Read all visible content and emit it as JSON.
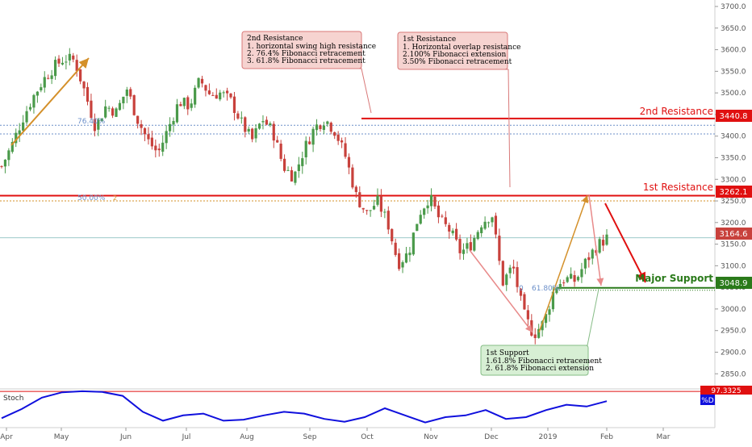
{
  "colors": {
    "up": "#4a9a4a",
    "down": "#c8413c",
    "resistance": "#e01010",
    "support": "#2a7a1a",
    "note_red_bg": "#f6d3d0",
    "note_red_border": "#d87878",
    "note_green_bg": "#d7efd4",
    "note_green_border": "#86bc86",
    "stoch_line": "#1010dd",
    "fib_line": "#6b8fc9",
    "orange_arrow": "#d4902a",
    "pink_arrow": "#e88a8a",
    "price_line": "#7ab8b8"
  },
  "notes": {
    "second_resistance": {
      "title": "2nd Resistance",
      "lines": [
        "1. horizontal swing high resistance",
        "2. 76.4% Fibonacci retracement",
        "3. 61.8% Fibonacci retracement"
      ]
    },
    "first_resistance": {
      "title": "1st Resistance",
      "lines": [
        "1. Horizontal overlap resistance",
        "2.100% Fibonacci extension",
        "3.50% Fibonacci retracement"
      ]
    },
    "first_support": {
      "title": "1st Support",
      "lines": [
        "1.61.8% Fibonacci retracement",
        "2. 61.8% Fibonacci extension"
      ]
    }
  },
  "labels": {
    "second_resistance": "2nd Resistance",
    "first_resistance": "1st Resistance",
    "major_support": "Major Support",
    "fib_764": "76.40%",
    "fib_50": "50.00%",
    "fib_50_marker": "2",
    "fib_618": "61.80%",
    "fib_618_prefix": "0",
    "stoch": "Stoch",
    "stoch_value": "97.3325",
    "stoch_tag": "%D"
  },
  "price_tags": {
    "second_resistance": "3440.8",
    "first_resistance": "3262.1",
    "current": "3164.6",
    "major_support": "3048.9"
  },
  "chart_data": {
    "type": "candlestick",
    "y_axis": {
      "ylim": [
        2815,
        3715
      ],
      "ticks": [
        2850,
        2900,
        2950,
        3000,
        3050,
        3100,
        3150,
        3200,
        3250,
        3300,
        3350,
        3400,
        3450,
        3500,
        3550,
        3600,
        3650,
        3700
      ]
    },
    "x_axis": {
      "ticks": [
        "Apr",
        "May",
        "Jun",
        "Jul",
        "Aug",
        "Sep",
        "Oct",
        "Nov",
        "Dec",
        "2019",
        "Feb",
        "Mar"
      ]
    },
    "levels": {
      "second_resistance": 3440.8,
      "first_resistance": 3262.1,
      "current_price": 3164.6,
      "major_support": 3048.9,
      "fib_76_4": 3425,
      "fib_50": 3250,
      "fib_upper_dotted": 3405
    },
    "price_path": [
      [
        "Apr",
        3330
      ],
      [
        "",
        3380
      ],
      [
        "",
        3440
      ],
      [
        "",
        3490
      ],
      [
        "May",
        3530
      ],
      [
        "",
        3560
      ],
      [
        "",
        3580
      ],
      [
        "",
        3575
      ],
      [
        "",
        3500
      ],
      [
        "Jun",
        3420
      ],
      [
        "",
        3470
      ],
      [
        "",
        3455
      ],
      [
        "",
        3510
      ],
      [
        "",
        3440
      ],
      [
        "",
        3390
      ],
      [
        "Jul",
        3360
      ],
      [
        "",
        3420
      ],
      [
        "",
        3480
      ],
      [
        "",
        3470
      ],
      [
        "Aug",
        3530
      ],
      [
        "",
        3495
      ],
      [
        "",
        3500
      ],
      [
        "",
        3480
      ],
      [
        "",
        3430
      ],
      [
        "",
        3390
      ],
      [
        "",
        3440
      ],
      [
        "",
        3410
      ],
      [
        "Sep",
        3330
      ],
      [
        "",
        3305
      ],
      [
        "",
        3370
      ],
      [
        "",
        3420
      ],
      [
        "",
        3440
      ],
      [
        "Oct",
        3410
      ],
      [
        "",
        3350
      ],
      [
        "",
        3260
      ],
      [
        "",
        3220
      ],
      [
        "",
        3250
      ],
      [
        "",
        3200
      ],
      [
        "Nov",
        3105
      ],
      [
        "",
        3130
      ],
      [
        "",
        3220
      ],
      [
        "",
        3260
      ],
      [
        "",
        3205
      ],
      [
        "",
        3180
      ],
      [
        "",
        3130
      ],
      [
        "",
        3150
      ],
      [
        "",
        3200
      ],
      [
        "Dec",
        3220
      ],
      [
        "",
        3060
      ],
      [
        "",
        3100
      ],
      [
        "",
        2990
      ],
      [
        "",
        2940
      ],
      [
        "2019",
        2970
      ],
      [
        "",
        3050
      ],
      [
        "",
        3070
      ],
      [
        "",
        3065
      ],
      [
        "",
        3110
      ],
      [
        "",
        3145
      ],
      [
        "Feb",
        3164
      ]
    ],
    "stochastic": {
      "name": "Stoch",
      "last_value": 97.3325,
      "path": [
        22,
        48,
        80,
        95,
        98,
        96,
        85,
        40,
        15,
        30,
        35,
        15,
        18,
        30,
        40,
        35,
        20,
        12,
        25,
        50,
        30,
        10,
        25,
        30,
        45,
        20,
        25,
        45,
        60,
        55,
        70
      ]
    }
  }
}
